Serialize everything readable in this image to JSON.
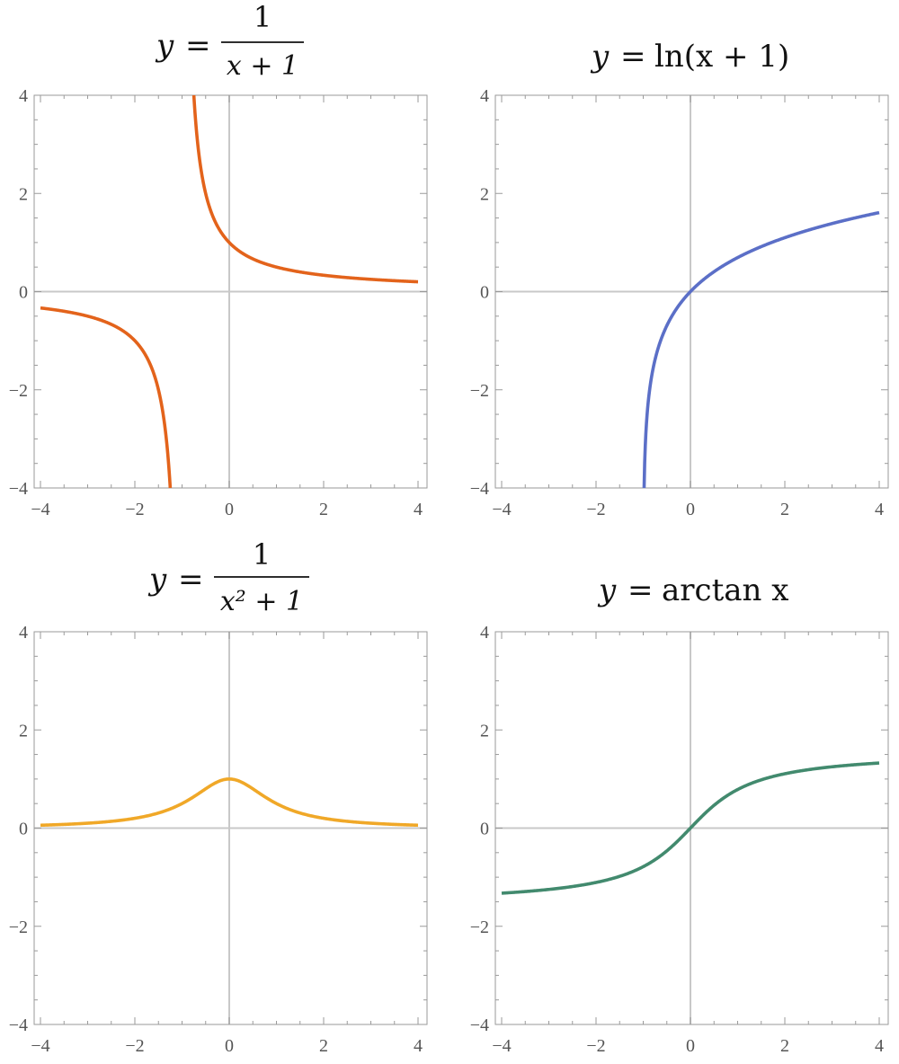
{
  "chart_data": [
    {
      "type": "line",
      "function": "1/(x+1)",
      "title": {
        "lhs": "y",
        "eq": "=",
        "numerator": "1",
        "denominator": "x + 1"
      },
      "xlim": [
        -4,
        4
      ],
      "ylim": [
        -4,
        4
      ],
      "x_ticks": [
        "−4",
        "−2",
        "0",
        "2",
        "4"
      ],
      "y_ticks": [
        "4",
        "2",
        "0",
        "−2",
        "−4"
      ],
      "color": "#e3631b",
      "grid": false,
      "axes_through_origin": true,
      "series": [
        {
          "segment": "left",
          "x": [
            -4,
            -3.5,
            -3,
            -2.5,
            -2,
            -1.75,
            -1.5,
            -1.4,
            -1.3,
            -1.25
          ],
          "y": [
            -0.333,
            -0.4,
            -0.5,
            -0.667,
            -1,
            -1.333,
            -2,
            -2.5,
            -3.333,
            -4
          ]
        },
        {
          "segment": "right",
          "x": [
            -0.75,
            -0.7,
            -0.6,
            -0.5,
            -0.25,
            0,
            0.5,
            1,
            1.5,
            2,
            3,
            4
          ],
          "y": [
            4,
            3.333,
            2.5,
            2,
            1.333,
            1,
            0.667,
            0.5,
            0.4,
            0.333,
            0.25,
            0.2
          ]
        }
      ]
    },
    {
      "type": "line",
      "function": "ln(x+1)",
      "title": {
        "lhs": "y",
        "eq": "=",
        "text": "ln(x + 1)"
      },
      "xlim": [
        -4,
        4
      ],
      "ylim": [
        -4,
        4
      ],
      "x_ticks": [
        "−4",
        "−2",
        "0",
        "2",
        "4"
      ],
      "y_ticks": [
        "4",
        "2",
        "0",
        "−2",
        "−4"
      ],
      "color": "#5b6fc7",
      "grid": false,
      "axes_through_origin": true,
      "series": [
        {
          "x": [
            -0.9817,
            -0.95,
            -0.9,
            -0.8,
            -0.6,
            -0.4,
            -0.2,
            0,
            0.5,
            1,
            2,
            3,
            4
          ],
          "y": [
            -4,
            -3.0,
            -2.303,
            -1.609,
            -0.916,
            -0.511,
            -0.223,
            0,
            0.405,
            0.693,
            1.099,
            1.386,
            1.609
          ]
        }
      ]
    },
    {
      "type": "line",
      "function": "1/(x^2+1)",
      "title": {
        "lhs": "y",
        "eq": "=",
        "numerator": "1",
        "denominator": "x² + 1"
      },
      "xlim": [
        -4,
        4
      ],
      "ylim": [
        -4,
        4
      ],
      "x_ticks": [
        "−4",
        "−2",
        "0",
        "2",
        "4"
      ],
      "y_ticks": [
        "4",
        "2",
        "0",
        "−2",
        "−4"
      ],
      "color": "#f0a828",
      "grid": false,
      "axes_through_origin": true,
      "series": [
        {
          "x": [
            -4,
            -3,
            -2,
            -1.5,
            -1,
            -0.5,
            0,
            0.5,
            1,
            1.5,
            2,
            3,
            4
          ],
          "y": [
            0.059,
            0.1,
            0.2,
            0.308,
            0.5,
            0.8,
            1,
            0.8,
            0.5,
            0.308,
            0.2,
            0.1,
            0.059
          ]
        }
      ]
    },
    {
      "type": "line",
      "function": "arctan(x)",
      "title": {
        "lhs": "y",
        "eq": "=",
        "text": "arctan x"
      },
      "xlim": [
        -4,
        4
      ],
      "ylim": [
        -4,
        4
      ],
      "x_ticks": [
        "−4",
        "−2",
        "0",
        "2",
        "4"
      ],
      "y_ticks": [
        "4",
        "2",
        "0",
        "−2",
        "−4"
      ],
      "color": "#428a6e",
      "grid": false,
      "axes_through_origin": true,
      "series": [
        {
          "x": [
            -4,
            -3,
            -2,
            -1,
            -0.5,
            0,
            0.5,
            1,
            2,
            3,
            4
          ],
          "y": [
            -1.326,
            -1.249,
            -1.107,
            -0.785,
            -0.464,
            0,
            0.464,
            0.785,
            1.107,
            1.249,
            1.326
          ]
        }
      ]
    }
  ]
}
